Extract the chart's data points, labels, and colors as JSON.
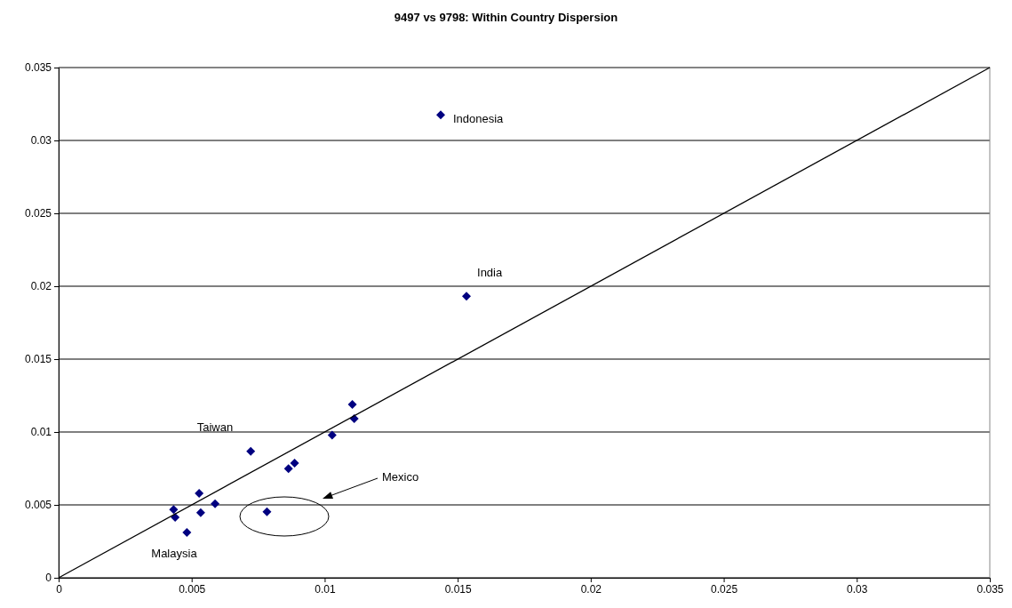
{
  "chart_data": {
    "type": "scatter",
    "title": "9497 vs 9798: Within Country Dispersion",
    "series": [
      {
        "color": "#000080",
        "marker": "diamond",
        "x": [
          0.01436,
          0.01533,
          0.01104,
          0.01111,
          0.01028,
          0.00722,
          0.00887,
          0.00864,
          0.00528,
          0.00588,
          0.00432,
          0.00438,
          0.00534,
          0.00482,
          0.00783
        ],
        "values": [
          0.03175,
          0.01931,
          0.01189,
          0.01092,
          0.00978,
          0.00868,
          0.00787,
          0.00748,
          0.00579,
          0.00508,
          0.00468,
          0.00415,
          0.00447,
          0.00311,
          0.00453
        ]
      },
      {
        "type": "line",
        "color": "#000000",
        "marker": "none",
        "x": [
          0,
          0.035
        ],
        "values": [
          0,
          0.035
        ]
      }
    ],
    "annotations": [
      {
        "text": "Indonesia",
        "x": 0.01436,
        "y": 0.03175
      },
      {
        "text": "India",
        "x": 0.01533,
        "y": 0.01931
      },
      {
        "text": "Taiwan",
        "x": 0.00722,
        "y": 0.00868
      },
      {
        "text": "Malaysia",
        "x": 0.00482,
        "y": 0.00311
      },
      "Mexico"
    ],
    "xlim": [
      0,
      0.035
    ],
    "xticks": [
      0,
      0.005,
      0.01,
      0.015,
      0.02,
      0.025,
      0.03,
      0.035
    ],
    "ylim": [
      0,
      0.035
    ],
    "yticks": [
      0,
      0.005,
      0.01,
      0.015,
      0.02,
      0.025,
      0.03,
      0.035
    ],
    "grid": "y"
  }
}
